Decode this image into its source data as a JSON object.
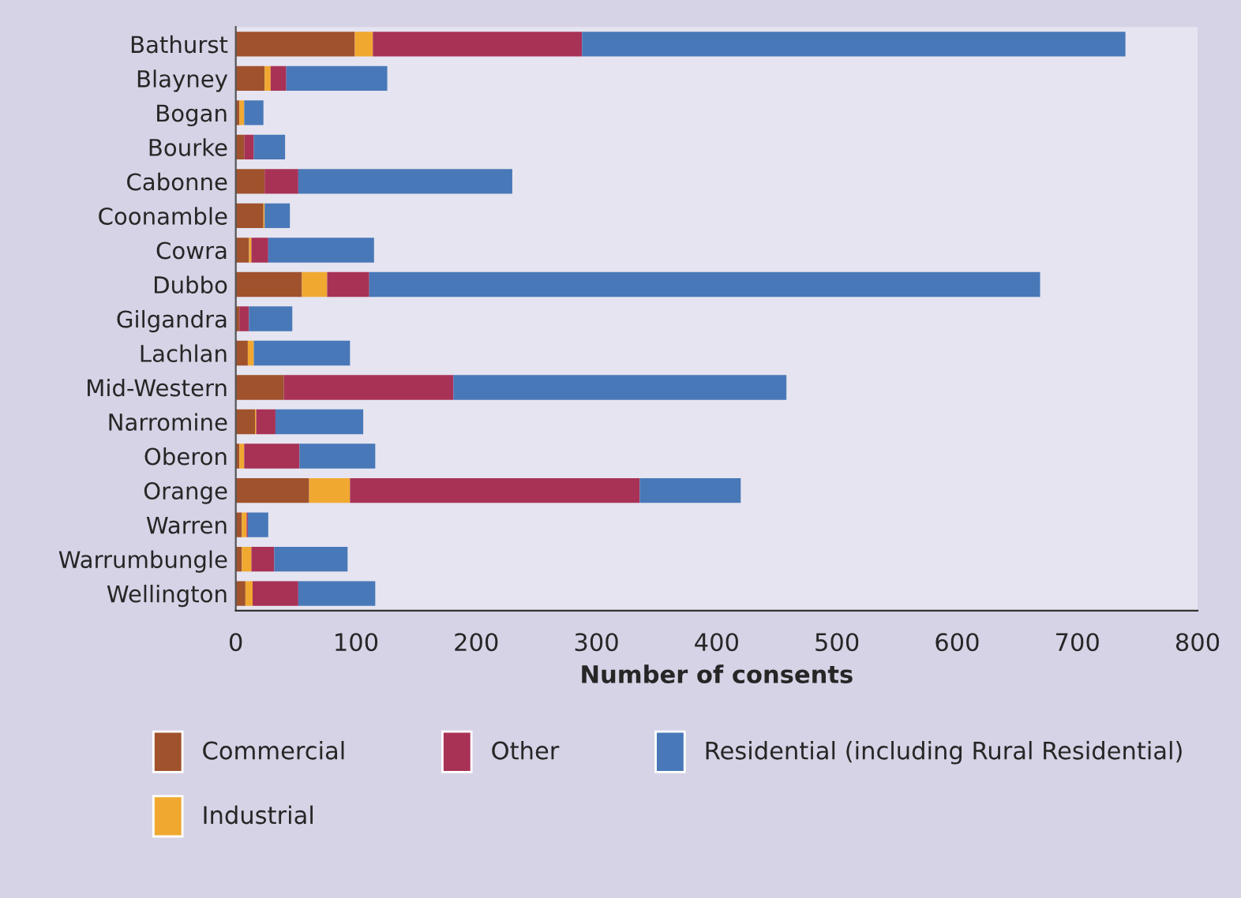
{
  "chart_data": {
    "type": "bar",
    "orientation": "horizontal",
    "stacked": true,
    "categories": [
      "Bathurst",
      "Blayney",
      "Bogan",
      "Bourke",
      "Cabonne",
      "Coonamble",
      "Cowra",
      "Dubbo",
      "Gilgandra",
      "Lachlan",
      "Mid-Western",
      "Narromine",
      "Oberon",
      "Orange",
      "Warren",
      "Warrumbungle",
      "Wellington"
    ],
    "series": [
      {
        "name": "Commercial",
        "color": "#a0522d",
        "values": [
          99,
          24,
          3,
          7,
          24,
          23,
          11,
          55,
          3,
          10,
          40,
          16,
          3,
          61,
          5,
          5,
          8
        ]
      },
      {
        "name": "Industrial",
        "color": "#f0a830",
        "values": [
          15,
          5,
          4,
          0,
          0,
          1,
          2,
          21,
          0,
          5,
          0,
          1,
          4,
          34,
          4,
          8,
          6
        ]
      },
      {
        "name": "Other",
        "color": "#a83256",
        "values": [
          174,
          13,
          0,
          8,
          28,
          0,
          14,
          35,
          8,
          0,
          141,
          16,
          46,
          241,
          1,
          19,
          38
        ]
      },
      {
        "name": "Residential (including Rural Residential)",
        "color": "#4878b8",
        "values": [
          452,
          84,
          16,
          26,
          178,
          21,
          88,
          558,
          36,
          80,
          277,
          73,
          63,
          84,
          17,
          61,
          64
        ]
      }
    ],
    "xlabel": "Number of consents",
    "xlim": [
      0,
      800
    ],
    "xticks": [
      0,
      100,
      200,
      300,
      400,
      500,
      600,
      700,
      800
    ],
    "grid": false,
    "legend": "bottom"
  }
}
